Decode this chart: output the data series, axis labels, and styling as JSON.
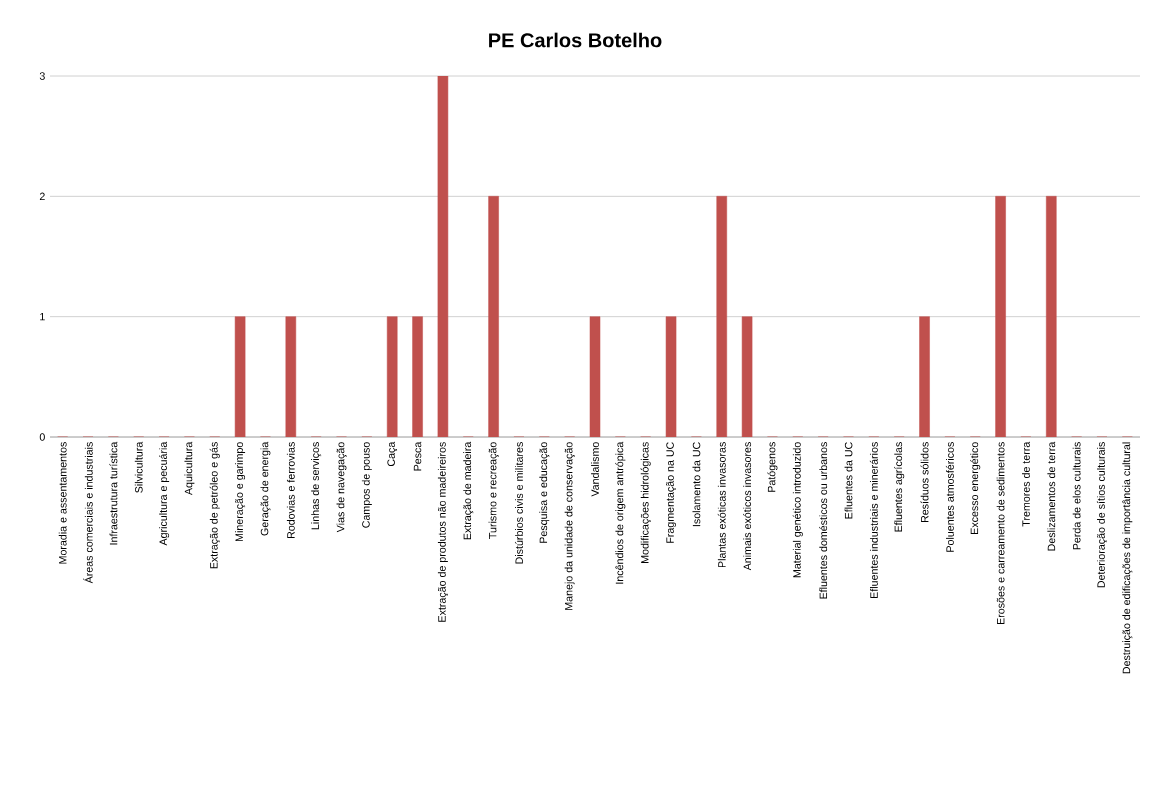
{
  "chart_data": {
    "type": "bar",
    "title": "PE Carlos Botelho",
    "categories": [
      "Moradia e assentamentos",
      "Áreas comerciais e industriais",
      "Infraestrutura turística",
      "Silvicultura",
      "Agricultura e pecuária",
      "Aquicultura",
      "Extração de petróleo e gás",
      "Mineração e garimpo",
      "Geração de energia",
      "Rodovias e ferrovias",
      "Linhas de serviços",
      "Vias de navegação",
      "Campos de pouso",
      "Caça",
      "Pesca",
      "Extração de produtos não madeireiros",
      "Extração de madeira",
      "Turismo e recreação",
      "Distúrbios civis e militares",
      "Pesquisa e educação",
      "Manejo da unidade de conservação",
      "Vandalismo",
      "Incêndios de origem antrópica",
      "Modificações hidrológicas",
      "Fragmentação na UC",
      "Isolamento da UC",
      "Plantas exóticas invasoras",
      "Animais exóticos invasores",
      "Patógenos",
      "Material genético introduzido",
      "Efluentes domésticos ou urbanos",
      "Efluentes da UC",
      "Efluentes industriais e  minerários",
      "Efluentes agrícolas",
      "Resíduos sólidos",
      "Poluentes atmosféricos",
      "Excesso energético",
      "Erosões e carreamento de sedimentos",
      "Tremores de terra",
      "Deslizamentos de terra",
      "Perda de elos culturais",
      "Deterioração de sítios culturais",
      "Destruição de edificações de importância cultural"
    ],
    "values": [
      0,
      0,
      0,
      0,
      0,
      0,
      0,
      1,
      0,
      1,
      0,
      0,
      0,
      1,
      1,
      3,
      0,
      2,
      0,
      0,
      0,
      1,
      0,
      0,
      1,
      0,
      2,
      1,
      0,
      0,
      0,
      0,
      0,
      0,
      1,
      0,
      0,
      2,
      0,
      2,
      0,
      0,
      0
    ],
    "color": "#c0504d",
    "ylim": [
      0,
      3
    ],
    "yticks": [
      0,
      1,
      2,
      3
    ],
    "grid": "y"
  }
}
